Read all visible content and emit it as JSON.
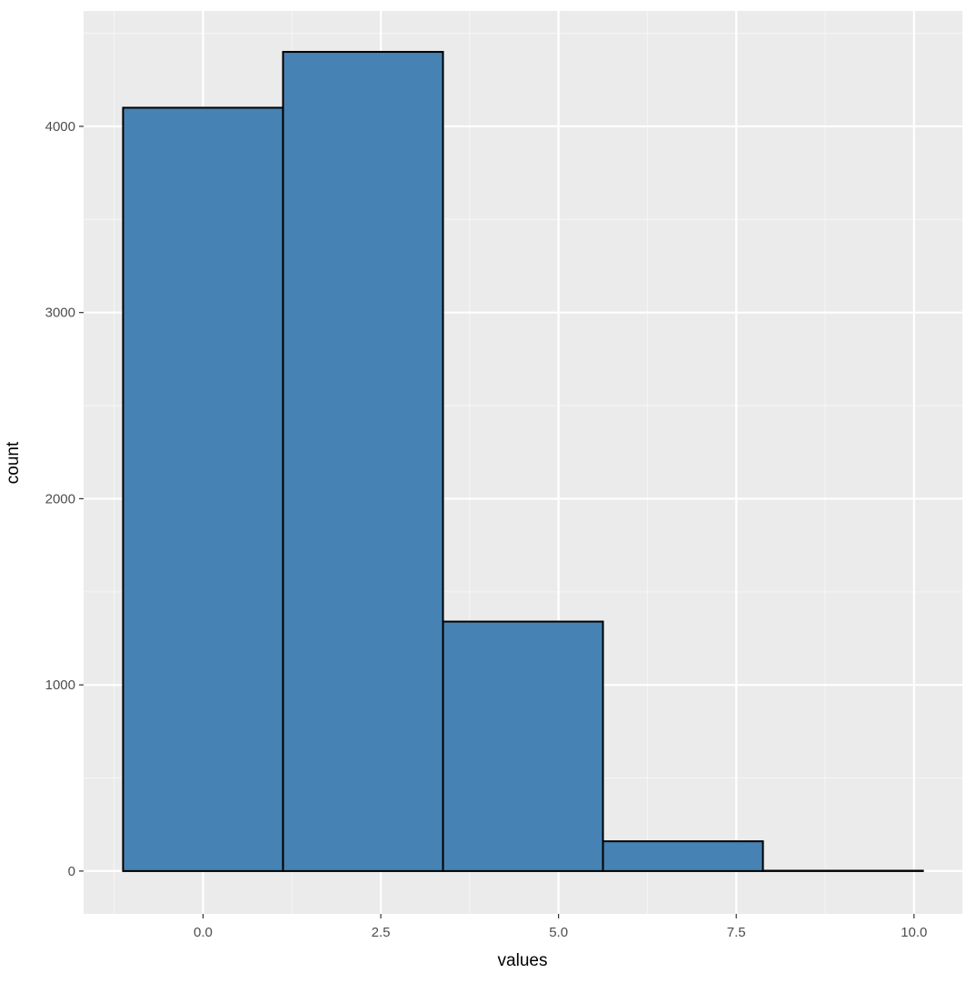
{
  "chart_data": {
    "type": "bar",
    "subtype": "histogram",
    "title": "",
    "xlabel": "values",
    "ylabel": "count",
    "bins": [
      {
        "x_start": -1.125,
        "x_end": 1.125,
        "count": 4100
      },
      {
        "x_start": 1.125,
        "x_end": 3.375,
        "count": 4400
      },
      {
        "x_start": 3.375,
        "x_end": 5.625,
        "count": 1340
      },
      {
        "x_start": 5.625,
        "x_end": 7.875,
        "count": 160
      },
      {
        "x_start": 7.875,
        "x_end": 10.125,
        "count": 2
      }
    ],
    "xlim": [
      -1.68,
      10.68
    ],
    "ylim": [
      -230,
      4620
    ],
    "x_ticks": [
      0,
      2.5,
      5,
      7.5,
      10
    ],
    "x_tick_labels": [
      "0.0",
      "2.5",
      "5.0",
      "7.5",
      "10.0"
    ],
    "y_ticks": [
      0,
      1000,
      2000,
      3000,
      4000
    ],
    "y_tick_labels": [
      "0",
      "1000",
      "2000",
      "3000",
      "4000"
    ],
    "grid": true,
    "colors": {
      "bar_fill": "#4682b4",
      "bar_outline": "#000000",
      "panel_background": "#ebebeb",
      "grid_major": "#ffffff",
      "grid_minor": "#f5f5f5",
      "tick_text": "#4d4d4d",
      "tick_mark": "#333333"
    }
  }
}
